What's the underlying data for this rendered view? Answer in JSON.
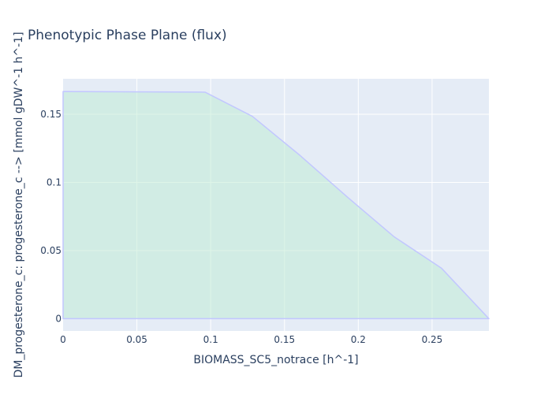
{
  "chart_data": {
    "type": "area",
    "title": "Phenotypic Phase Plane (flux)",
    "xlabel": "BIOMASS_SC5_notrace [h^-1]",
    "ylabel": "DM_progesterone_c: progesterone_c -->  [mmol gDW^-1 h^-1]",
    "xlim": [
      0,
      0.2885
    ],
    "ylim": [
      -0.009,
      0.176
    ],
    "xticks": [
      0,
      0.05,
      0.1,
      0.15,
      0.2,
      0.25
    ],
    "xtick_labels": [
      "0",
      "0.05",
      "0.1",
      "0.15",
      "0.2",
      "0.25"
    ],
    "yticks": [
      0,
      0.05,
      0.1,
      0.15
    ],
    "ytick_labels": [
      "0",
      "0.05",
      "0.1",
      "0.15"
    ],
    "grid": true,
    "series": [
      {
        "x": [
          0,
          0.0962,
          0.1282,
          0.1603,
          0.1923,
          0.2244,
          0.2564,
          0.2885
        ],
        "y": [
          0.1667,
          0.1662,
          0.1485,
          0.12,
          0.0895,
          0.06,
          0.037,
          0.0
        ],
        "fill_to": 0
      }
    ],
    "colors": {
      "plot_bg": "#e5ecf6",
      "grid": "#ffffff",
      "line": "#c2c7ff",
      "fill": "rgba(190,235,210,0.5)",
      "text": "#2a3f5f"
    }
  }
}
